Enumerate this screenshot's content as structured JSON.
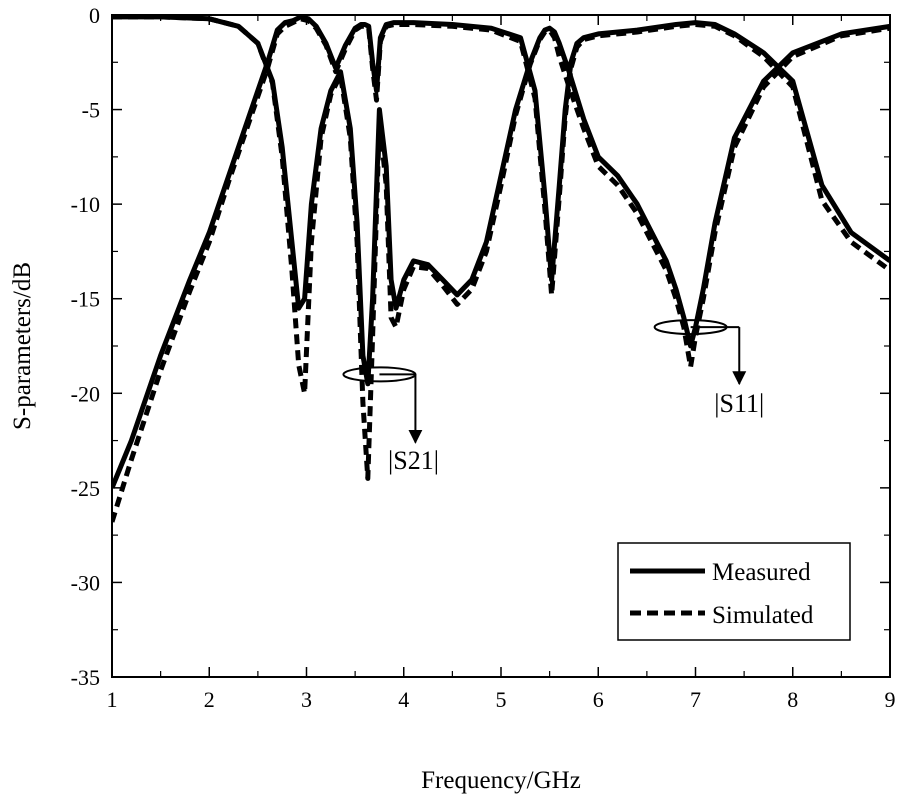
{
  "chart_data": {
    "type": "line",
    "title": "",
    "xlabel": "Frequency/GHz",
    "ylabel": "S-parameters/dB",
    "xlim": [
      1,
      9
    ],
    "ylim": [
      -35,
      0
    ],
    "xticks": [
      1,
      2,
      3,
      4,
      5,
      6,
      7,
      8,
      9
    ],
    "yticks": [
      0,
      -5,
      -10,
      -15,
      -20,
      -25,
      -30,
      -35
    ],
    "legend": {
      "position": "bottom-right",
      "entries": [
        {
          "label": "Measured",
          "style": "solid"
        },
        {
          "label": "Simulated",
          "style": "dashed"
        }
      ]
    },
    "annotations": [
      {
        "text": "|S21|",
        "ellipse_at": [
          3.75,
          -19.0
        ],
        "arrow_x": 4.12,
        "arrow_to_y": -22.6,
        "label_at": [
          4.1,
          -24.0
        ]
      },
      {
        "text": "|S11|",
        "ellipse_at": [
          6.95,
          -16.5
        ],
        "arrow_x": 7.45,
        "arrow_to_y": -19.5,
        "label_at": [
          7.45,
          -21.0
        ]
      }
    ],
    "series": [
      {
        "name": "|S21| Measured",
        "group": "S21",
        "style": "solid",
        "x": [
          1.0,
          1.2,
          1.5,
          1.8,
          2.0,
          2.2,
          2.4,
          2.6,
          2.7,
          2.78,
          2.86,
          2.94,
          3.02,
          3.1,
          3.2,
          3.3,
          3.4,
          3.5,
          3.56,
          3.6,
          3.64,
          3.68,
          3.72,
          3.76,
          3.82,
          3.9,
          4.1,
          4.5,
          4.9,
          5.2,
          5.35,
          5.45,
          5.52,
          5.6,
          5.66,
          5.72,
          5.78,
          5.85,
          6.0,
          6.4,
          6.8,
          7.0,
          7.2,
          7.4,
          7.7,
          8.0,
          8.3,
          8.6,
          9.0
        ],
        "y": [
          -25.0,
          -22.5,
          -18.0,
          -14.0,
          -11.5,
          -8.5,
          -5.5,
          -2.5,
          -0.8,
          -0.4,
          -0.3,
          -0.1,
          -0.2,
          -0.6,
          -1.5,
          -2.8,
          -1.6,
          -0.7,
          -0.5,
          -0.5,
          -0.6,
          -2.5,
          -4.0,
          -1.2,
          -0.5,
          -0.4,
          -0.4,
          -0.5,
          -0.7,
          -1.2,
          -4.0,
          -9.5,
          -14.0,
          -9.0,
          -5.0,
          -2.5,
          -1.5,
          -1.2,
          -1.0,
          -0.8,
          -0.5,
          -0.4,
          -0.5,
          -1.0,
          -2.0,
          -3.5,
          -9.0,
          -11.5,
          -13.0
        ]
      },
      {
        "name": "|S21| Simulated",
        "group": "S21",
        "style": "dashed",
        "x": [
          1.0,
          1.2,
          1.5,
          1.8,
          2.0,
          2.2,
          2.4,
          2.6,
          2.7,
          2.78,
          2.86,
          2.94,
          3.02,
          3.1,
          3.2,
          3.3,
          3.4,
          3.5,
          3.56,
          3.6,
          3.64,
          3.68,
          3.72,
          3.76,
          3.82,
          3.9,
          4.1,
          4.5,
          4.9,
          5.2,
          5.35,
          5.45,
          5.52,
          5.6,
          5.66,
          5.72,
          5.78,
          5.85,
          6.0,
          6.4,
          6.8,
          7.0,
          7.2,
          7.4,
          7.7,
          8.0,
          8.3,
          8.6,
          9.0
        ],
        "y": [
          -26.8,
          -23.5,
          -18.8,
          -14.6,
          -12.0,
          -8.8,
          -5.8,
          -2.8,
          -1.0,
          -0.6,
          -0.4,
          -0.2,
          -0.3,
          -0.7,
          -1.6,
          -3.0,
          -1.8,
          -0.8,
          -0.6,
          -0.6,
          -0.7,
          -2.8,
          -4.5,
          -1.4,
          -0.6,
          -0.5,
          -0.5,
          -0.6,
          -0.8,
          -1.4,
          -4.4,
          -10.2,
          -14.8,
          -9.6,
          -5.4,
          -2.8,
          -1.7,
          -1.3,
          -1.1,
          -0.9,
          -0.6,
          -0.5,
          -0.6,
          -1.1,
          -2.2,
          -3.8,
          -9.8,
          -12.0,
          -13.5
        ]
      },
      {
        "name": "|S11| Measured",
        "group": "S11",
        "style": "solid",
        "x": [
          1.0,
          1.5,
          2.0,
          2.3,
          2.5,
          2.65,
          2.75,
          2.85,
          2.92,
          2.98,
          3.05,
          3.15,
          3.25,
          3.35,
          3.45,
          3.52,
          3.58,
          3.63,
          3.68,
          3.75,
          3.82,
          3.87,
          3.92,
          4.0,
          4.1,
          4.25,
          4.4,
          4.55,
          4.7,
          4.85,
          5.0,
          5.15,
          5.3,
          5.4,
          5.45,
          5.5,
          5.55,
          5.6,
          5.7,
          5.85,
          6.0,
          6.2,
          6.4,
          6.55,
          6.7,
          6.8,
          6.88,
          6.95,
          7.0,
          7.08,
          7.2,
          7.4,
          7.7,
          8.0,
          8.5,
          9.0
        ],
        "y": [
          -0.1,
          -0.1,
          -0.2,
          -0.6,
          -1.5,
          -3.5,
          -7.0,
          -12.0,
          -15.5,
          -15.0,
          -10.0,
          -6.0,
          -4.0,
          -3.0,
          -6.0,
          -11.0,
          -18.0,
          -19.5,
          -15.0,
          -5.0,
          -8.0,
          -14.0,
          -15.5,
          -14.0,
          -13.0,
          -13.2,
          -14.0,
          -14.8,
          -14.0,
          -12.0,
          -8.5,
          -5.0,
          -2.5,
          -1.2,
          -0.8,
          -0.7,
          -0.9,
          -1.5,
          -3.0,
          -5.5,
          -7.5,
          -8.5,
          -10.0,
          -11.5,
          -13.0,
          -14.5,
          -16.0,
          -17.5,
          -16.5,
          -14.5,
          -11.0,
          -6.5,
          -3.5,
          -2.0,
          -1.0,
          -0.6
        ]
      },
      {
        "name": "|S11| Simulated",
        "group": "S11",
        "style": "dashed",
        "x": [
          1.0,
          1.5,
          2.0,
          2.3,
          2.5,
          2.65,
          2.75,
          2.85,
          2.92,
          2.98,
          3.05,
          3.15,
          3.25,
          3.35,
          3.45,
          3.52,
          3.58,
          3.63,
          3.68,
          3.75,
          3.82,
          3.87,
          3.92,
          4.0,
          4.1,
          4.25,
          4.4,
          4.55,
          4.7,
          4.85,
          5.0,
          5.15,
          5.3,
          5.4,
          5.45,
          5.5,
          5.55,
          5.6,
          5.7,
          5.85,
          6.0,
          6.2,
          6.4,
          6.55,
          6.7,
          6.8,
          6.88,
          6.95,
          7.0,
          7.08,
          7.2,
          7.4,
          7.7,
          8.0,
          8.5,
          9.0
        ],
        "y": [
          -0.1,
          -0.1,
          -0.2,
          -0.6,
          -1.5,
          -3.6,
          -7.5,
          -13.5,
          -18.5,
          -20.0,
          -12.0,
          -6.5,
          -4.2,
          -3.2,
          -6.5,
          -12.0,
          -20.5,
          -24.5,
          -17.0,
          -5.5,
          -9.0,
          -16.0,
          -16.5,
          -14.5,
          -13.3,
          -13.4,
          -14.3,
          -15.3,
          -14.5,
          -12.5,
          -9.0,
          -5.3,
          -2.6,
          -1.3,
          -0.9,
          -0.8,
          -1.2,
          -2.2,
          -3.8,
          -6.0,
          -8.0,
          -9.0,
          -10.5,
          -12.0,
          -13.5,
          -15.0,
          -16.5,
          -18.6,
          -17.0,
          -15.0,
          -11.5,
          -7.0,
          -3.8,
          -2.2,
          -1.1,
          -0.7
        ]
      }
    ]
  }
}
